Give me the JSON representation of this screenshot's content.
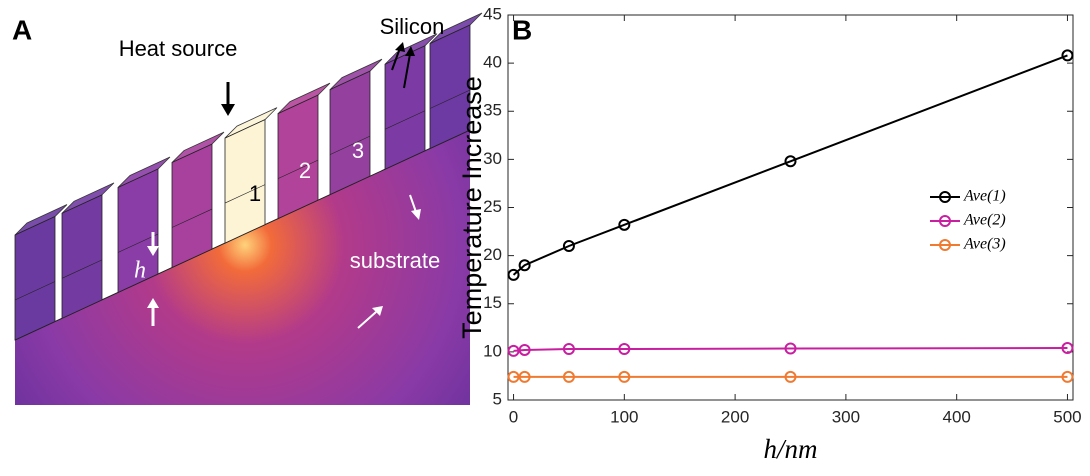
{
  "panel_a": {
    "panel_label": "A",
    "heat_source": "Heat source",
    "silicon": "Silicon",
    "labels": [
      "1",
      "2",
      "3"
    ],
    "h": "h",
    "substrate": "substrate"
  },
  "chart_data": {
    "type": "line",
    "panel_label": "B",
    "x_label": "h/nm",
    "y_label": "Temperature Increase",
    "x": [
      0,
      10,
      50,
      100,
      250,
      500
    ],
    "series": [
      {
        "name": "Ave(1)",
        "color": "#000000",
        "values": [
          18.0,
          19.0,
          21.0,
          23.2,
          29.8,
          40.8
        ]
      },
      {
        "name": "Ave(2)",
        "color": "#c81fa0",
        "values": [
          10.1,
          10.2,
          10.3,
          10.3,
          10.35,
          10.4
        ]
      },
      {
        "name": "Ave(3)",
        "color": "#f07a30",
        "values": [
          7.4,
          7.4,
          7.4,
          7.4,
          7.4,
          7.4
        ]
      }
    ],
    "xlim": [
      -5,
      505
    ],
    "ylim": [
      5,
      45
    ],
    "xticks": [
      0,
      100,
      200,
      300,
      400,
      500
    ],
    "yticks": [
      5,
      10,
      15,
      20,
      25,
      30,
      35,
      40,
      45
    ],
    "legend": "right"
  }
}
